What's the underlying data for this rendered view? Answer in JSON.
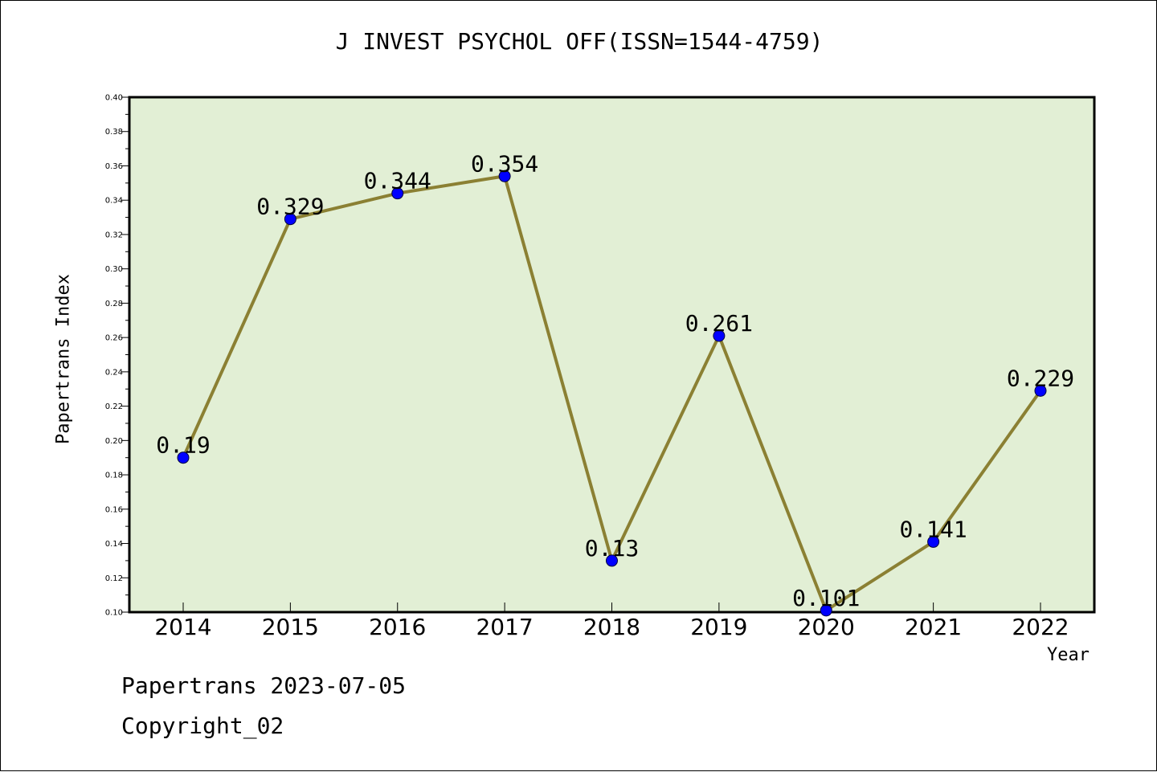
{
  "chart_data": {
    "type": "line",
    "title": "J INVEST PSYCHOL OFF(ISSN=1544-4759)",
    "xlabel": "Year",
    "ylabel": "Papertrans Index",
    "categories": [
      "2014",
      "2015",
      "2016",
      "2017",
      "2018",
      "2019",
      "2020",
      "2021",
      "2022"
    ],
    "series": [
      {
        "values": [
          0.19,
          0.329,
          0.344,
          0.354,
          0.13,
          0.261,
          0.101,
          0.141,
          0.229
        ],
        "labels": [
          "0.19",
          "0.329",
          "0.344",
          "0.354",
          "0.13",
          "0.261",
          "0.101",
          "0.141",
          "0.229"
        ]
      }
    ],
    "ylim": [
      0.1,
      0.4
    ],
    "yticks": [
      "0.10",
      "0.12",
      "0.14",
      "0.16",
      "0.18",
      "0.20",
      "0.22",
      "0.24",
      "0.26",
      "0.28",
      "0.30",
      "0.32",
      "0.34",
      "0.36",
      "0.38",
      "0.40"
    ],
    "grid": false,
    "legend": "none"
  },
  "footer": {
    "line1": "Papertrans 2023-07-05",
    "line2": "Copyright_02"
  },
  "colors": {
    "plot_background": "#e2efd5",
    "line": "#8b8033",
    "marker": "#0000ff"
  }
}
